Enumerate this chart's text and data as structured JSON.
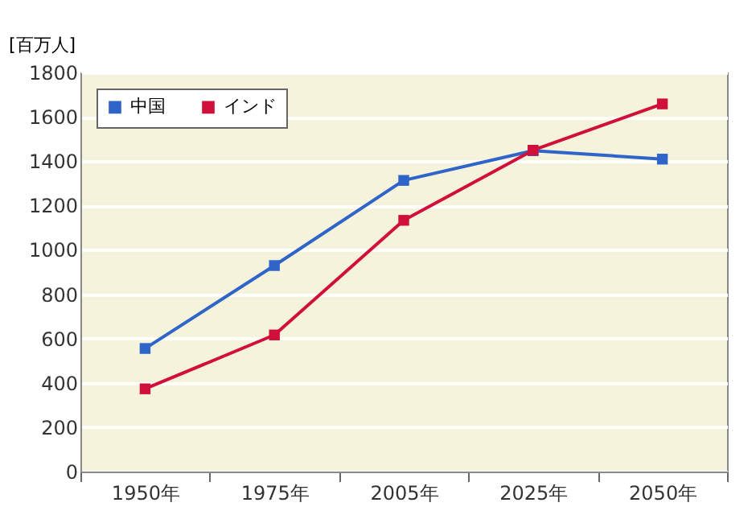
{
  "chart_data": {
    "type": "line",
    "ylabel": "[百万人]",
    "categories": [
      "1950年",
      "1975年",
      "2005年",
      "2025年",
      "2050年"
    ],
    "series": [
      {
        "name": "中国",
        "color": "#2f64c8",
        "values": [
          555,
          929,
          1313,
          1447,
          1409
        ]
      },
      {
        "name": "インド",
        "color": "#d0103a",
        "values": [
          373,
          616,
          1133,
          1449,
          1658
        ]
      }
    ],
    "ylim": [
      0,
      1800
    ],
    "yticks": [
      0,
      200,
      400,
      600,
      800,
      1000,
      1200,
      1400,
      1600,
      1800
    ],
    "grid": "y",
    "legend": "top left",
    "marker": "square",
    "line_style": "solid"
  }
}
